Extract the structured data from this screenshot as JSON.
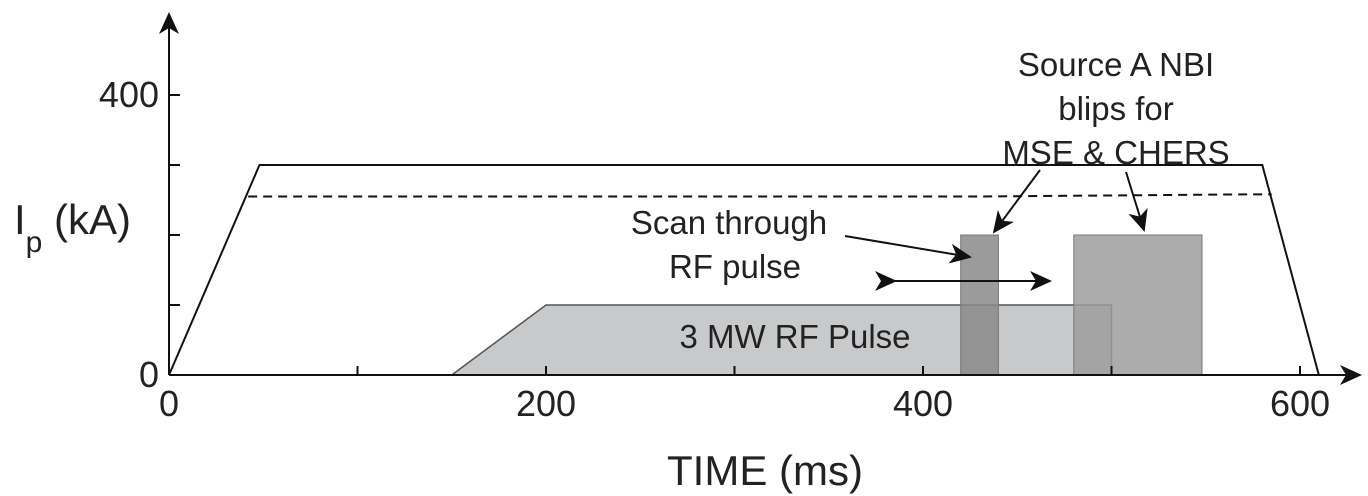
{
  "chart_data": {
    "type": "line",
    "x_axis": {
      "label": "TIME (ms)",
      "range": [
        0,
        630
      ],
      "ticks": [
        0,
        100,
        200,
        300,
        400,
        500,
        600
      ],
      "tick_labels": [
        "0",
        "",
        "200",
        "",
        "400",
        "",
        "600"
      ]
    },
    "y_axis": {
      "label_main": "I",
      "label_sub": "p",
      "label_units": " (kA)",
      "range": [
        0,
        470
      ],
      "ticks": [
        0,
        100,
        200,
        300,
        400
      ],
      "tick_labels": [
        "0",
        "",
        "",
        "",
        "400"
      ]
    },
    "series": [
      {
        "style": "solid",
        "x": [
          0,
          48,
          580,
          610
        ],
        "y": [
          0,
          300,
          300,
          0
        ]
      },
      {
        "style": "dashed",
        "x": [
          42,
          430,
          570,
          585
        ],
        "y": [
          255,
          255,
          258,
          258
        ]
      }
    ],
    "regions": [
      {
        "label": "3 MW RF Pulse",
        "x": [
          150,
          200,
          500,
          500
        ],
        "y": [
          0,
          100,
          100,
          0
        ],
        "color": "#c8c9cb"
      },
      {
        "label": "",
        "x_range": [
          420,
          440
        ],
        "y_range": [
          0,
          200
        ],
        "color": "#8a8a8a"
      },
      {
        "label": "",
        "x_range": [
          480,
          548
        ],
        "y_range": [
          0,
          200
        ],
        "color": "#9e9e9e"
      }
    ],
    "annotations": [
      {
        "lines": [
          "Source A NBI",
          "blips for",
          "MSE & CHERS"
        ]
      },
      {
        "lines": [
          "Scan through",
          "RF pulse"
        ]
      },
      {
        "lines": [
          "3 MW RF Pulse"
        ]
      }
    ],
    "grid": false,
    "legend": "none"
  },
  "colors": {
    "axis": "#111111",
    "line": "#111111",
    "rf_fill": "#c8c9cb",
    "blip_dark": "#8a8a8a",
    "blip_light": "#9e9e9e"
  }
}
